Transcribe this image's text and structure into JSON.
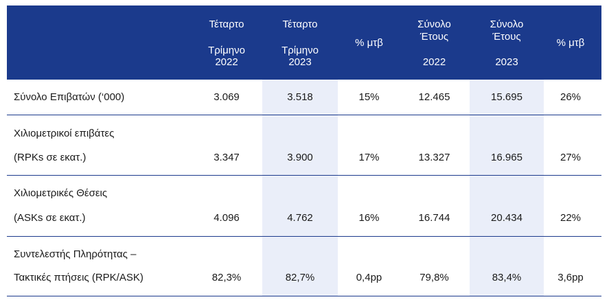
{
  "header": {
    "q4_2022": [
      "Τέταρτο",
      "Τρίμηνο",
      "2022"
    ],
    "q4_2023": [
      "Τέταρτο",
      "Τρίμηνο",
      "2023"
    ],
    "yoy_q": "% μτβ",
    "fy_2022": [
      "Σύνολο",
      "Έτους",
      "2022"
    ],
    "fy_2023": [
      "Σύνολο",
      "Έτους",
      "2023"
    ],
    "yoy_fy": "% μτβ"
  },
  "rows": [
    {
      "label": [
        "Σύνολο Επιβατών (‘000)"
      ],
      "values": [
        "3.069",
        "3.518",
        "15%",
        "12.465",
        "15.695",
        "26%"
      ]
    },
    {
      "label": [
        "Χιλιομετρικοί επιβάτες",
        "(RPKs σε εκατ.)"
      ],
      "values": [
        "3.347",
        "3.900",
        "17%",
        "13.327",
        "16.965",
        "27%"
      ]
    },
    {
      "label": [
        "Χιλιομετρικές Θέσεις",
        "(ASKs σε εκατ.)"
      ],
      "values": [
        "4.096",
        "4.762",
        "16%",
        "16.744",
        "20.434",
        "22%"
      ]
    },
    {
      "label": [
        "Συντελεστής Πληρότητας –",
        "Τακτικές πτήσεις (RPK/ASK)"
      ],
      "values": [
        "82,3%",
        "82,7%",
        "0,4pp",
        "79,8%",
        "83,4%",
        "3,6pp"
      ]
    }
  ],
  "colors": {
    "header_bg": "#1b3a8c",
    "highlight_bg": "#eaeef9",
    "rule": "#1b3a8c"
  }
}
